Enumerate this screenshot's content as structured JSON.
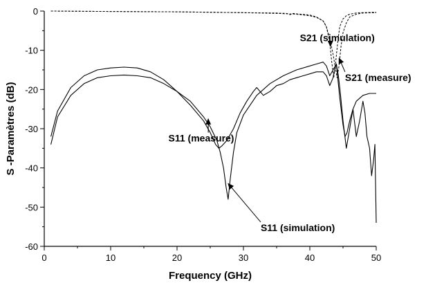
{
  "chart_data": {
    "type": "line",
    "xlabel": "Frequency (GHz)",
    "ylabel": "S -Paramètres (dB)",
    "xlim": [
      0,
      50
    ],
    "ylim": [
      -60,
      0
    ],
    "xticks": [
      0,
      10,
      20,
      30,
      40,
      50
    ],
    "yticks": [
      0,
      -10,
      -20,
      -30,
      -40,
      -50,
      -60
    ],
    "grid": false,
    "legend": "none",
    "series": [
      {
        "name": "S11 (measure)",
        "style": "solid",
        "x": [
          1,
          2,
          4,
          6,
          8,
          10,
          12,
          14,
          16,
          18,
          20,
          22,
          24,
          25,
          25.8,
          26.3,
          26.8,
          27.5,
          28.5,
          29.5,
          30.5,
          31.5,
          32,
          32.5,
          33,
          34,
          35,
          36,
          37,
          38,
          39,
          40,
          41,
          42,
          42.5,
          43,
          43.5,
          43.8,
          44,
          44.3,
          44.6,
          45,
          45.5,
          46,
          46.5,
          47,
          47.5,
          48,
          48.3,
          48.6,
          49,
          49.3,
          49.6,
          49.8,
          50
        ],
        "y": [
          -32,
          -25.5,
          -19.5,
          -16.5,
          -15,
          -14.5,
          -14.3,
          -14.5,
          -15.5,
          -17.5,
          -20.5,
          -24,
          -28,
          -31,
          -34,
          -35,
          -34.3,
          -33,
          -30,
          -26,
          -23,
          -20.5,
          -19.5,
          -20.5,
          -21.5,
          -20.5,
          -19,
          -18.5,
          -17.5,
          -17,
          -16.5,
          -16,
          -15.5,
          -15.5,
          -16.5,
          -19,
          -17,
          -14.5,
          -13.5,
          -16.5,
          -21,
          -28,
          -35,
          -30,
          -25,
          -32,
          -28,
          -23,
          -26,
          -32,
          -35,
          -42,
          -38,
          -34,
          -54
        ]
      },
      {
        "name": "S11 (simulation)",
        "style": "solid",
        "x": [
          1,
          2,
          4,
          6,
          8,
          10,
          12,
          14,
          16,
          18,
          20,
          22,
          24,
          25,
          26,
          26.5,
          27,
          27.4,
          27.7,
          28,
          28.5,
          29,
          30,
          32,
          34,
          36,
          38,
          40,
          41,
          42,
          42.5,
          43,
          43.5,
          44,
          44.5,
          45,
          45.3,
          45.6,
          46,
          46.5,
          47,
          48,
          49,
          50
        ],
        "y": [
          -34,
          -27,
          -21.5,
          -18.5,
          -17,
          -16.5,
          -16.3,
          -16.5,
          -17,
          -18.5,
          -20.5,
          -23,
          -27,
          -29.5,
          -33,
          -36,
          -40,
          -45,
          -48,
          -43,
          -36,
          -31,
          -26.5,
          -21.5,
          -18.5,
          -16.5,
          -15,
          -14,
          -13.5,
          -13,
          -14,
          -16.5,
          -15,
          -13.5,
          -22,
          -29,
          -32,
          -31,
          -28,
          -25,
          -23,
          -21.5,
          -21,
          -21
        ]
      },
      {
        "name": "S21 (simulation)",
        "style": "dashed",
        "x": [
          1,
          10,
          20,
          30,
          35,
          38,
          40,
          41,
          42,
          42.5,
          43,
          43.3,
          43.6,
          43.9,
          44.2,
          44.5,
          45,
          45.5,
          46,
          47,
          48,
          50
        ],
        "y": [
          0,
          -0.1,
          -0.2,
          -0.4,
          -0.6,
          -0.8,
          -1.2,
          -1.6,
          -2.5,
          -4,
          -8,
          -13,
          -17,
          -13,
          -8,
          -4,
          -2,
          -1.2,
          -0.8,
          -0.5,
          -0.4,
          -0.3
        ]
      },
      {
        "name": "S21 (measure)",
        "style": "dashed",
        "x": [
          1,
          10,
          20,
          30,
          35,
          36.5,
          37,
          37.5,
          38,
          40,
          41,
          42,
          42.5,
          43,
          43.5,
          43.8,
          44.1,
          44.4,
          44.7,
          45,
          45.5,
          46,
          47,
          48,
          50
        ],
        "y": [
          0,
          -0.1,
          -0.2,
          -0.4,
          -0.5,
          -0.6,
          -0.9,
          -0.6,
          -0.7,
          -1,
          -1.5,
          -2.5,
          -4,
          -7,
          -11,
          -14,
          -17,
          -14,
          -9,
          -5.5,
          -3,
          -1.5,
          -0.8,
          -0.5,
          -0.4
        ]
      }
    ],
    "annotations": [
      {
        "text": "S21 (simulation)",
        "text_x": 38.5,
        "text_y": -7.7,
        "arrow_to_x": 43.1,
        "arrow_to_y": -9
      },
      {
        "text": "S21 (measure)",
        "text_x": 45.3,
        "text_y": -17.8,
        "arrow_to_x": 44.4,
        "arrow_to_y": -12
      },
      {
        "text": "S11 (measure)",
        "text_x": 18.7,
        "text_y": -33.3,
        "arrow_to_x": 24.7,
        "arrow_to_y": -27.5
      },
      {
        "text": "S11 (simulation)",
        "text_x": 32.6,
        "text_y": -56.1,
        "arrow_to_x": 27.7,
        "arrow_to_y": -44
      }
    ]
  }
}
